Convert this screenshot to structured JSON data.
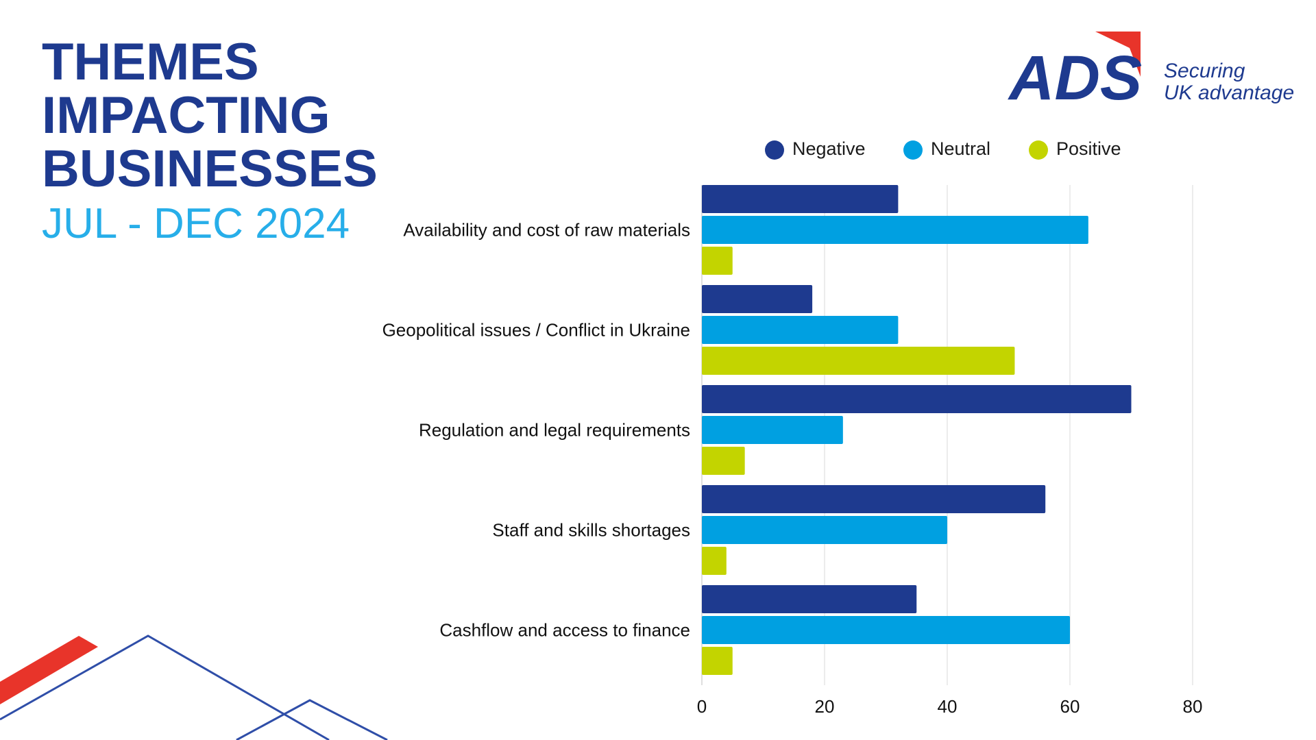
{
  "header": {
    "title_lines": [
      "THEMES",
      "IMPACTING",
      "BUSINESSES"
    ],
    "subtitle": "JUL - DEC 2024"
  },
  "logo": {
    "wordmark": "ADS",
    "tagline_line1": "Securing",
    "tagline_line2": "UK advantage",
    "colors": {
      "navy": "#1e3a8f",
      "red": "#e8342a"
    }
  },
  "chart_data": {
    "type": "bar",
    "orientation": "horizontal",
    "categories": [
      "Availability and cost of raw materials",
      "Geopolitical issues / Conflict in Ukraine",
      "Regulation and legal requirements",
      "Staff and skills shortages",
      "Cashflow and access to finance"
    ],
    "series": [
      {
        "name": "Negative",
        "color": "#1e3a8f",
        "values": [
          32,
          18,
          70,
          56,
          35
        ]
      },
      {
        "name": "Neutral",
        "color": "#00a0e1",
        "values": [
          63,
          32,
          23,
          40,
          60
        ]
      },
      {
        "name": "Positive",
        "color": "#c3d400",
        "values": [
          5,
          51,
          7,
          4,
          5
        ]
      }
    ],
    "xlim": [
      0,
      80
    ],
    "xticks": [
      0,
      20,
      40,
      60,
      80
    ],
    "grid": true,
    "legend_position": "top"
  }
}
